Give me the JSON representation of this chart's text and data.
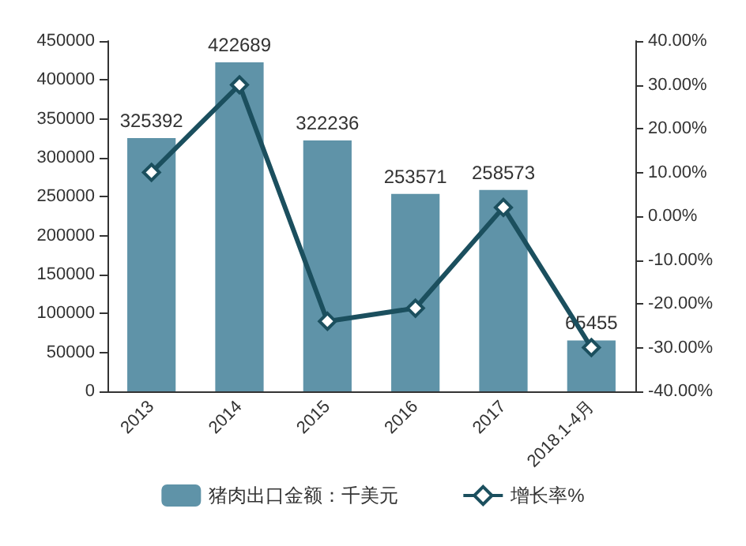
{
  "chart_data": {
    "type": "bar",
    "categories": [
      "2013",
      "2014",
      "2015",
      "2016",
      "2017",
      "2018.1-4月"
    ],
    "series": [
      {
        "name": "猪肉出口金额：千美元",
        "color": "#5f93a8",
        "values": [
          325392,
          422689,
          322236,
          253571,
          258573,
          65455
        ],
        "value_labels": [
          "325392",
          "422689",
          "322236",
          "253571",
          "258573",
          "65455"
        ]
      },
      {
        "name": "增长率%",
        "type": "line",
        "axis": "y2",
        "color": "#1b4f5e",
        "values": [
          10,
          30,
          -24,
          -21,
          2,
          -30
        ],
        "marker": "diamond"
      }
    ],
    "ylim": [
      0,
      450000
    ],
    "yticks": [
      0,
      50000,
      100000,
      150000,
      200000,
      250000,
      300000,
      350000,
      400000,
      450000
    ],
    "y2lim": [
      -40,
      40
    ],
    "y2ticks": [
      {
        "value": -40,
        "label": "-40.00%"
      },
      {
        "value": -30,
        "label": "-30.00%"
      },
      {
        "value": -20,
        "label": "-20.00%"
      },
      {
        "value": -10,
        "label": "-10.00%"
      },
      {
        "value": 0,
        "label": "0.00%"
      },
      {
        "value": 10,
        "label": "10.00%"
      },
      {
        "value": 20,
        "label": "20.00%"
      },
      {
        "value": 30,
        "label": "30.00%"
      },
      {
        "value": 40,
        "label": "40.00%"
      }
    ],
    "grid": false,
    "legend": "bottom"
  }
}
